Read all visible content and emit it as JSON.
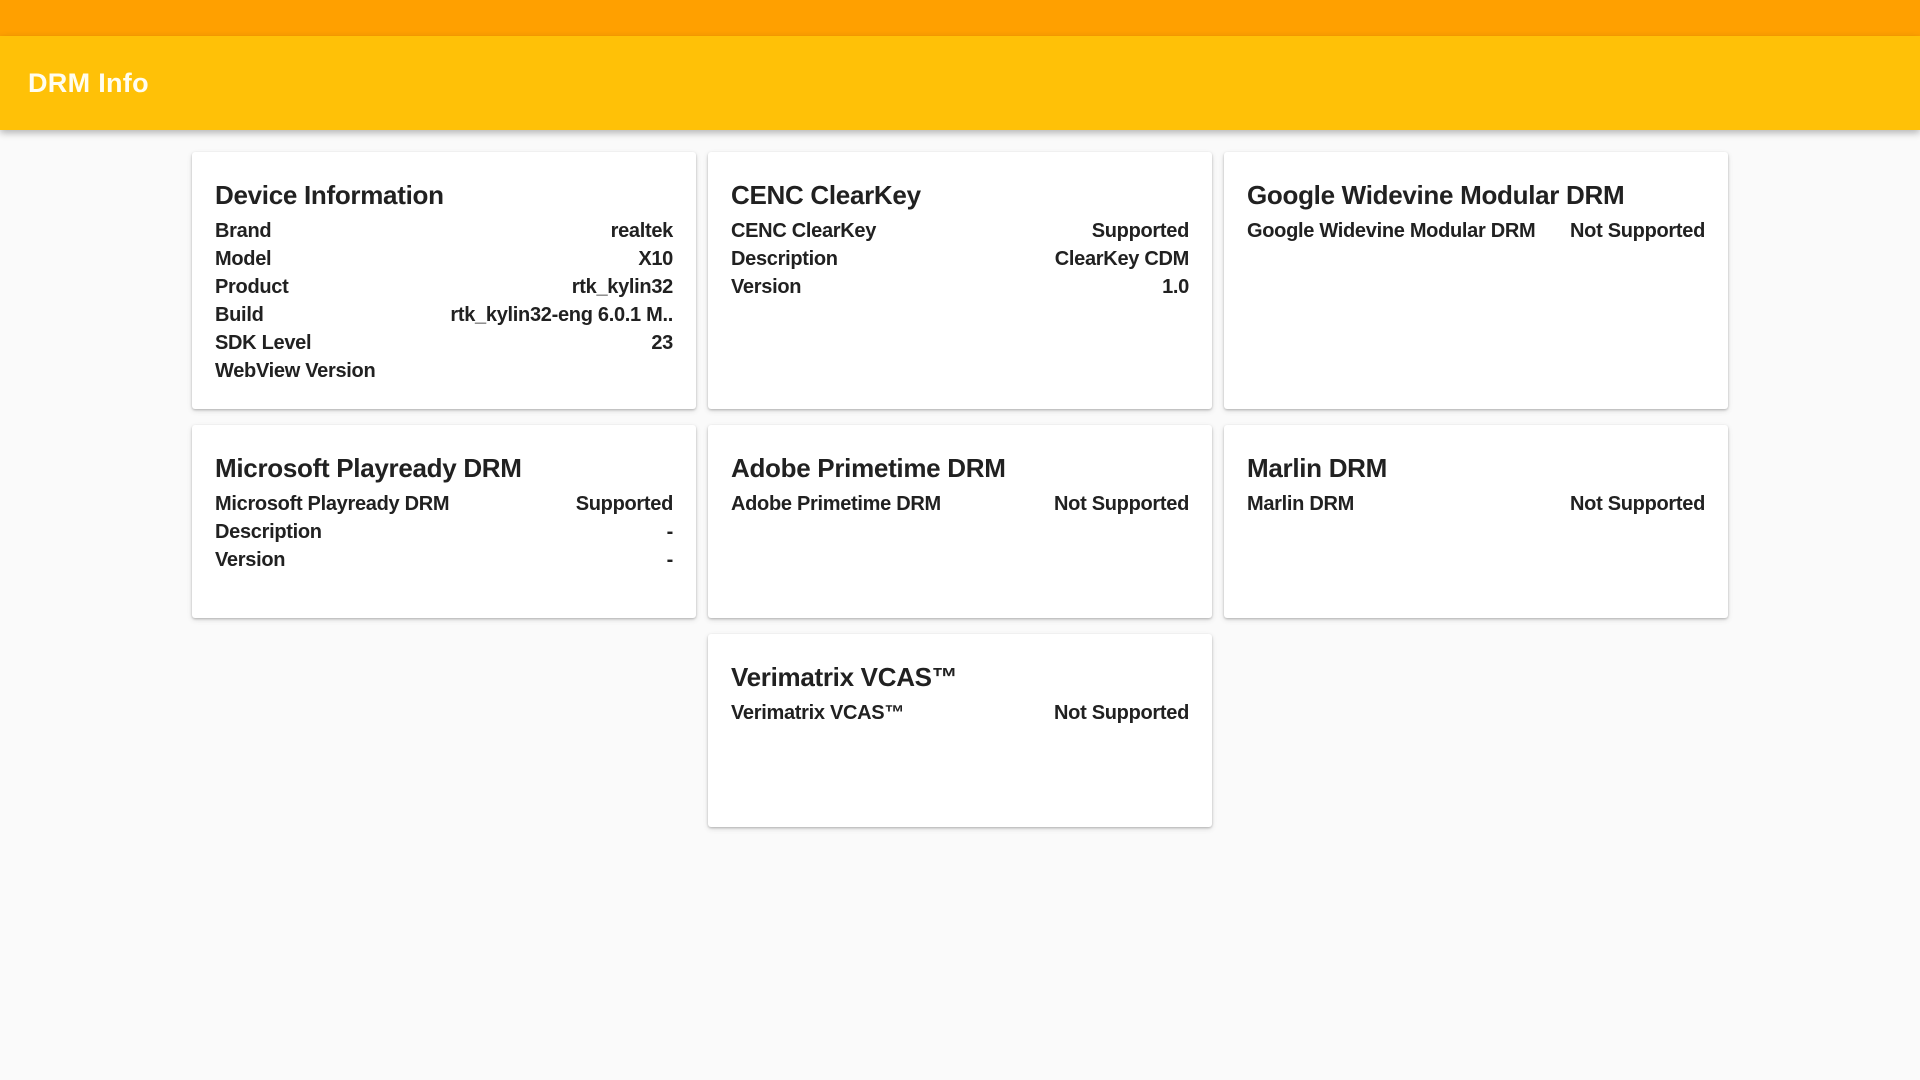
{
  "app": {
    "title": "DRM Info",
    "colors": {
      "status_bar": "#FFA000",
      "app_bar": "#FFC107",
      "app_bar_text": "#FFFDF0",
      "background": "#FAFAFA",
      "card_background": "#FFFFFF",
      "text": "#212121"
    }
  },
  "cards": [
    {
      "title": "Device Information",
      "rows": [
        {
          "label": "Brand",
          "value": "realtek"
        },
        {
          "label": "Model",
          "value": "X10"
        },
        {
          "label": "Product",
          "value": "rtk_kylin32"
        },
        {
          "label": "Build",
          "value": "rtk_kylin32-eng 6.0.1 M.."
        },
        {
          "label": "SDK Level",
          "value": "23"
        },
        {
          "label": "WebView Version",
          "value": ""
        }
      ]
    },
    {
      "title": "CENC ClearKey",
      "rows": [
        {
          "label": "CENC ClearKey",
          "value": "Supported"
        },
        {
          "label": "Description",
          "value": "ClearKey CDM"
        },
        {
          "label": "Version",
          "value": "1.0"
        }
      ]
    },
    {
      "title": "Google Widevine Modular DRM",
      "rows": [
        {
          "label": "Google Widevine Modular DRM",
          "value": "Not Supported"
        }
      ]
    },
    {
      "title": "Microsoft Playready DRM",
      "rows": [
        {
          "label": "Microsoft Playready DRM",
          "value": "Supported"
        },
        {
          "label": "Description",
          "value": "-"
        },
        {
          "label": "Version",
          "value": "-"
        }
      ]
    },
    {
      "title": "Adobe Primetime DRM",
      "rows": [
        {
          "label": "Adobe Primetime DRM",
          "value": "Not Supported"
        }
      ]
    },
    {
      "title": "Marlin DRM",
      "rows": [
        {
          "label": "Marlin DRM",
          "value": "Not Supported"
        }
      ]
    },
    {
      "title": "Verimatrix VCAS™",
      "rows": [
        {
          "label": "Verimatrix VCAS™",
          "value": "Not Supported"
        }
      ]
    }
  ]
}
